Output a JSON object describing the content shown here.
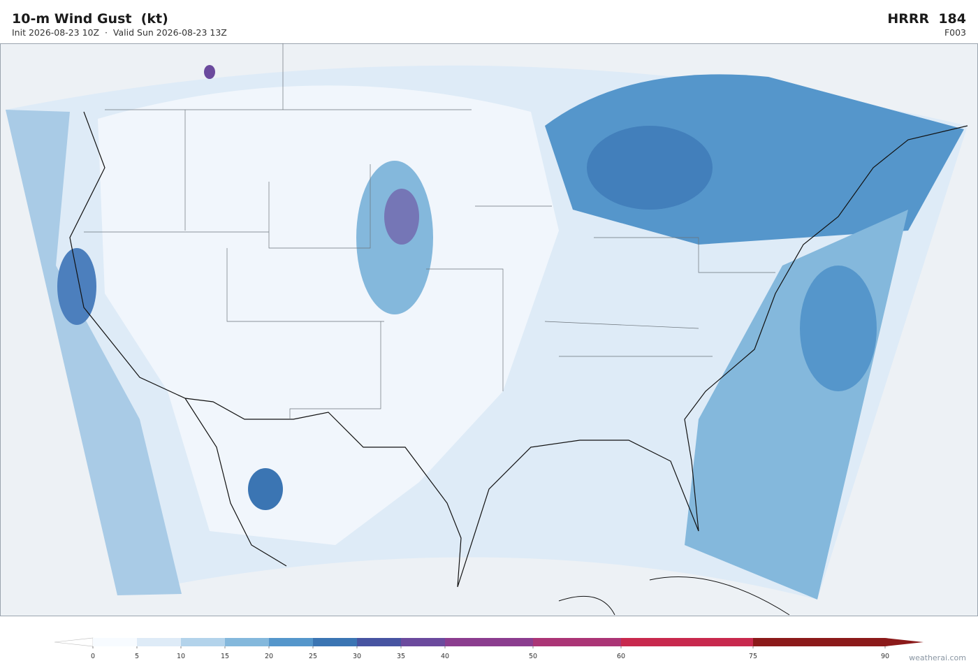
{
  "header": {
    "title": "10-m Wind Gust  (kt)",
    "subtitle": "Init 2026-08-23 10Z  ·  Valid Sun 2026-08-23 13Z",
    "model": "HRRR  184",
    "forecast_hour": "F003"
  },
  "colorbar": {
    "ticks": [
      0,
      5,
      10,
      15,
      20,
      25,
      30,
      35,
      40,
      50,
      60,
      75,
      90
    ],
    "colors": [
      "#f7fbff",
      "#deebf7",
      "#b3d3eb",
      "#84b8dc",
      "#5596cb",
      "#3b75b3",
      "#4754a1",
      "#6b4a9d",
      "#8b3d8f",
      "#ab3576",
      "#c8294e",
      "#8b1a1a"
    ],
    "under_color": "#ffffff",
    "over_color": "#8b1a1a"
  },
  "watermark": "weatherai.com"
}
